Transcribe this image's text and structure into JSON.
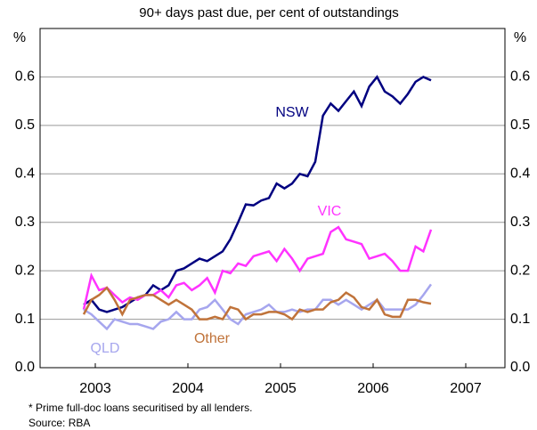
{
  "chart_data": {
    "type": "line",
    "subtitle": "90+ days past due, per cent of outstandings",
    "ylabel": "%",
    "y2label": "%",
    "footnote": "*  Prime full-doc loans securitised by all lenders.",
    "source": "Source: RBA",
    "x": [
      2002.875,
      2002.958,
      2003.042,
      2003.125,
      2003.208,
      2003.292,
      2003.375,
      2003.458,
      2003.542,
      2003.625,
      2003.708,
      2003.792,
      2003.875,
      2003.958,
      2004.042,
      2004.125,
      2004.208,
      2004.292,
      2004.375,
      2004.458,
      2004.542,
      2004.625,
      2004.708,
      2004.792,
      2004.875,
      2004.958,
      2005.042,
      2005.125,
      2005.208,
      2005.292,
      2005.375,
      2005.458,
      2005.542,
      2005.625,
      2005.708,
      2005.792,
      2005.875,
      2005.958,
      2006.042,
      2006.125,
      2006.208,
      2006.292,
      2006.375,
      2006.458,
      2006.542,
      2006.625
    ],
    "series": [
      {
        "name": "NSW",
        "color": "#000080",
        "values": [
          0.13,
          0.14,
          0.12,
          0.115,
          0.12,
          0.125,
          0.135,
          0.145,
          0.15,
          0.17,
          0.16,
          0.17,
          0.2,
          0.205,
          0.215,
          0.225,
          0.22,
          0.23,
          0.24,
          0.265,
          0.3,
          0.337,
          0.335,
          0.345,
          0.35,
          0.38,
          0.37,
          0.38,
          0.4,
          0.395,
          0.425,
          0.52,
          0.545,
          0.53,
          0.55,
          0.57,
          0.54,
          0.58,
          0.6,
          0.57,
          0.56,
          0.545,
          0.565,
          0.59,
          0.6,
          0.593
        ]
      },
      {
        "name": "VIC",
        "color": "#ff33ff",
        "values": [
          0.12,
          0.19,
          0.16,
          0.165,
          0.15,
          0.135,
          0.145,
          0.14,
          0.15,
          0.15,
          0.16,
          0.145,
          0.17,
          0.175,
          0.16,
          0.17,
          0.185,
          0.155,
          0.2,
          0.195,
          0.215,
          0.21,
          0.23,
          0.235,
          0.24,
          0.22,
          0.245,
          0.225,
          0.2,
          0.225,
          0.23,
          0.235,
          0.28,
          0.29,
          0.265,
          0.26,
          0.255,
          0.225,
          0.23,
          0.235,
          0.22,
          0.2,
          0.2,
          0.25,
          0.24,
          0.285
        ]
      },
      {
        "name": "QLD",
        "color": "#a6a6ee",
        "values": [
          0.12,
          0.11,
          0.095,
          0.08,
          0.1,
          0.095,
          0.09,
          0.09,
          0.085,
          0.08,
          0.095,
          0.1,
          0.115,
          0.1,
          0.1,
          0.12,
          0.125,
          0.14,
          0.12,
          0.1,
          0.09,
          0.11,
          0.115,
          0.12,
          0.13,
          0.115,
          0.115,
          0.12,
          0.115,
          0.12,
          0.12,
          0.14,
          0.14,
          0.13,
          0.14,
          0.13,
          0.12,
          0.13,
          0.14,
          0.12,
          0.12,
          0.12,
          0.12,
          0.13,
          0.15,
          0.172
        ]
      },
      {
        "name": "Other",
        "color": "#c0733a",
        "values": [
          0.11,
          0.14,
          0.15,
          0.165,
          0.14,
          0.11,
          0.14,
          0.145,
          0.15,
          0.15,
          0.14,
          0.13,
          0.14,
          0.13,
          0.12,
          0.1,
          0.1,
          0.105,
          0.1,
          0.125,
          0.12,
          0.1,
          0.11,
          0.11,
          0.115,
          0.115,
          0.11,
          0.1,
          0.12,
          0.115,
          0.12,
          0.12,
          0.135,
          0.14,
          0.155,
          0.145,
          0.125,
          0.12,
          0.14,
          0.11,
          0.105,
          0.105,
          0.14,
          0.14,
          0.135,
          0.132
        ]
      }
    ],
    "xlim": [
      2002.404,
      2007.423
    ],
    "xticks": [
      2003,
      2004,
      2005,
      2006,
      2007
    ],
    "ylim": [
      0,
      0.7
    ],
    "yticks": [
      {
        "value": 0,
        "label": "0.0"
      },
      0.1,
      0.2,
      0.3,
      0.4,
      0.5,
      0.6
    ],
    "y2lim": [
      0,
      0.7
    ],
    "y2ticks": [
      {
        "value": 0,
        "label": "0.0"
      },
      0.1,
      0.2,
      0.3,
      0.4,
      0.5,
      0.6
    ],
    "grid": true
  }
}
